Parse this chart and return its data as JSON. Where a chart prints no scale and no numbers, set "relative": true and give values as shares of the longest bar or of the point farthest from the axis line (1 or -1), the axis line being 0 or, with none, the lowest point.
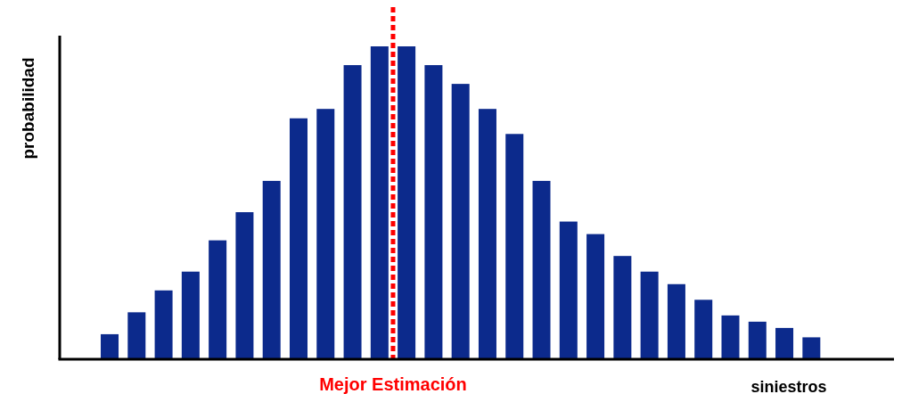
{
  "chart_data": {
    "type": "bar",
    "relative": true,
    "xlabel": "siniestros",
    "ylabel": "probabilidad",
    "color": "#0c2a8c",
    "categories": [
      null,
      null,
      null,
      null,
      null,
      null,
      null,
      null,
      null,
      null,
      null,
      null,
      null,
      null,
      null,
      null,
      null,
      null,
      null,
      null,
      null,
      null,
      null,
      null,
      null,
      null,
      null
    ],
    "values": [
      0.08,
      0.15,
      0.22,
      0.28,
      0.38,
      0.47,
      0.57,
      0.77,
      0.8,
      0.94,
      1,
      1,
      0.94,
      0.88,
      0.8,
      0.72,
      0.57,
      0.44,
      0.4,
      0.33,
      0.28,
      0.24,
      0.19,
      0.14,
      0.12,
      0.1,
      0.07
    ],
    "annotations": [
      "Mejor Estimación"
    ]
  }
}
